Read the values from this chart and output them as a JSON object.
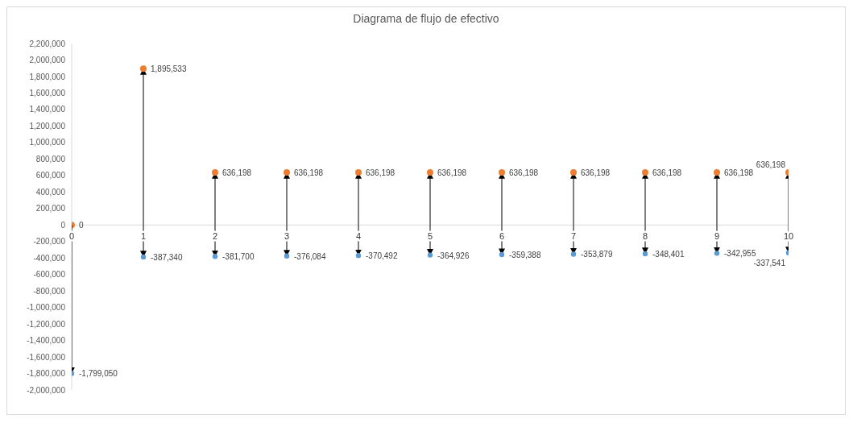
{
  "chart_data": {
    "type": "lollipop",
    "title": "Diagrama de flujo de efectivo",
    "x": [
      0,
      1,
      2,
      3,
      4,
      5,
      6,
      7,
      8,
      9,
      10
    ],
    "series": [
      {
        "color": "#ed7d31",
        "values": [
          0,
          1895533,
          636198,
          636198,
          636198,
          636198,
          636198,
          636198,
          636198,
          636198,
          636198
        ],
        "value_labels": [
          "0",
          "1,895,533",
          "636,198",
          "636,198",
          "636,198",
          "636,198",
          "636,198",
          "636,198",
          "636,198",
          "636,198",
          "636,198"
        ]
      },
      {
        "color": "#5b9bd5",
        "values": [
          -1799050,
          -387340,
          -381700,
          -376084,
          -370492,
          -364926,
          -359388,
          -353879,
          -348401,
          -342955,
          -337541
        ],
        "value_labels": [
          "-1,799,050",
          "-387,340",
          "-381,700",
          "-376,084",
          "-370,492",
          "-364,926",
          "-359,388",
          "-353,879",
          "-348,401",
          "-342,955",
          "-337,541"
        ]
      }
    ],
    "xlim": [
      0,
      10
    ],
    "xticks": [
      0,
      1,
      2,
      3,
      4,
      5,
      6,
      7,
      8,
      9,
      10
    ],
    "ylim": [
      -2000000,
      2200000
    ],
    "yticks": [
      {
        "value": -2000000,
        "label": "-2,000,000"
      },
      {
        "value": -1800000,
        "label": "-1,800,000"
      },
      {
        "value": -1600000,
        "label": "-1,600,000"
      },
      {
        "value": -1400000,
        "label": "-1,400,000"
      },
      {
        "value": -1200000,
        "label": "-1,200,000"
      },
      {
        "value": -1000000,
        "label": "-1,000,000"
      },
      {
        "value": -800000,
        "label": "-800,000"
      },
      {
        "value": -600000,
        "label": "-600,000"
      },
      {
        "value": -400000,
        "label": "-400,000"
      },
      {
        "value": -200000,
        "label": "-200,000"
      },
      0,
      {
        "value": 200000,
        "label": "200,000"
      },
      {
        "value": 400000,
        "label": "400,000"
      },
      {
        "value": 600000,
        "label": "600,000"
      },
      {
        "value": 800000,
        "label": "800,000"
      },
      {
        "value": 1000000,
        "label": "1,000,000"
      },
      {
        "value": 1200000,
        "label": "1,200,000"
      },
      {
        "value": 1400000,
        "label": "1,400,000"
      },
      {
        "value": 1600000,
        "label": "1,600,000"
      },
      {
        "value": 1800000,
        "label": "1,800,000"
      },
      {
        "value": 2000000,
        "label": "2,000,000"
      },
      {
        "value": 2200000,
        "label": "2,200,000"
      }
    ],
    "marker": "circle"
  }
}
